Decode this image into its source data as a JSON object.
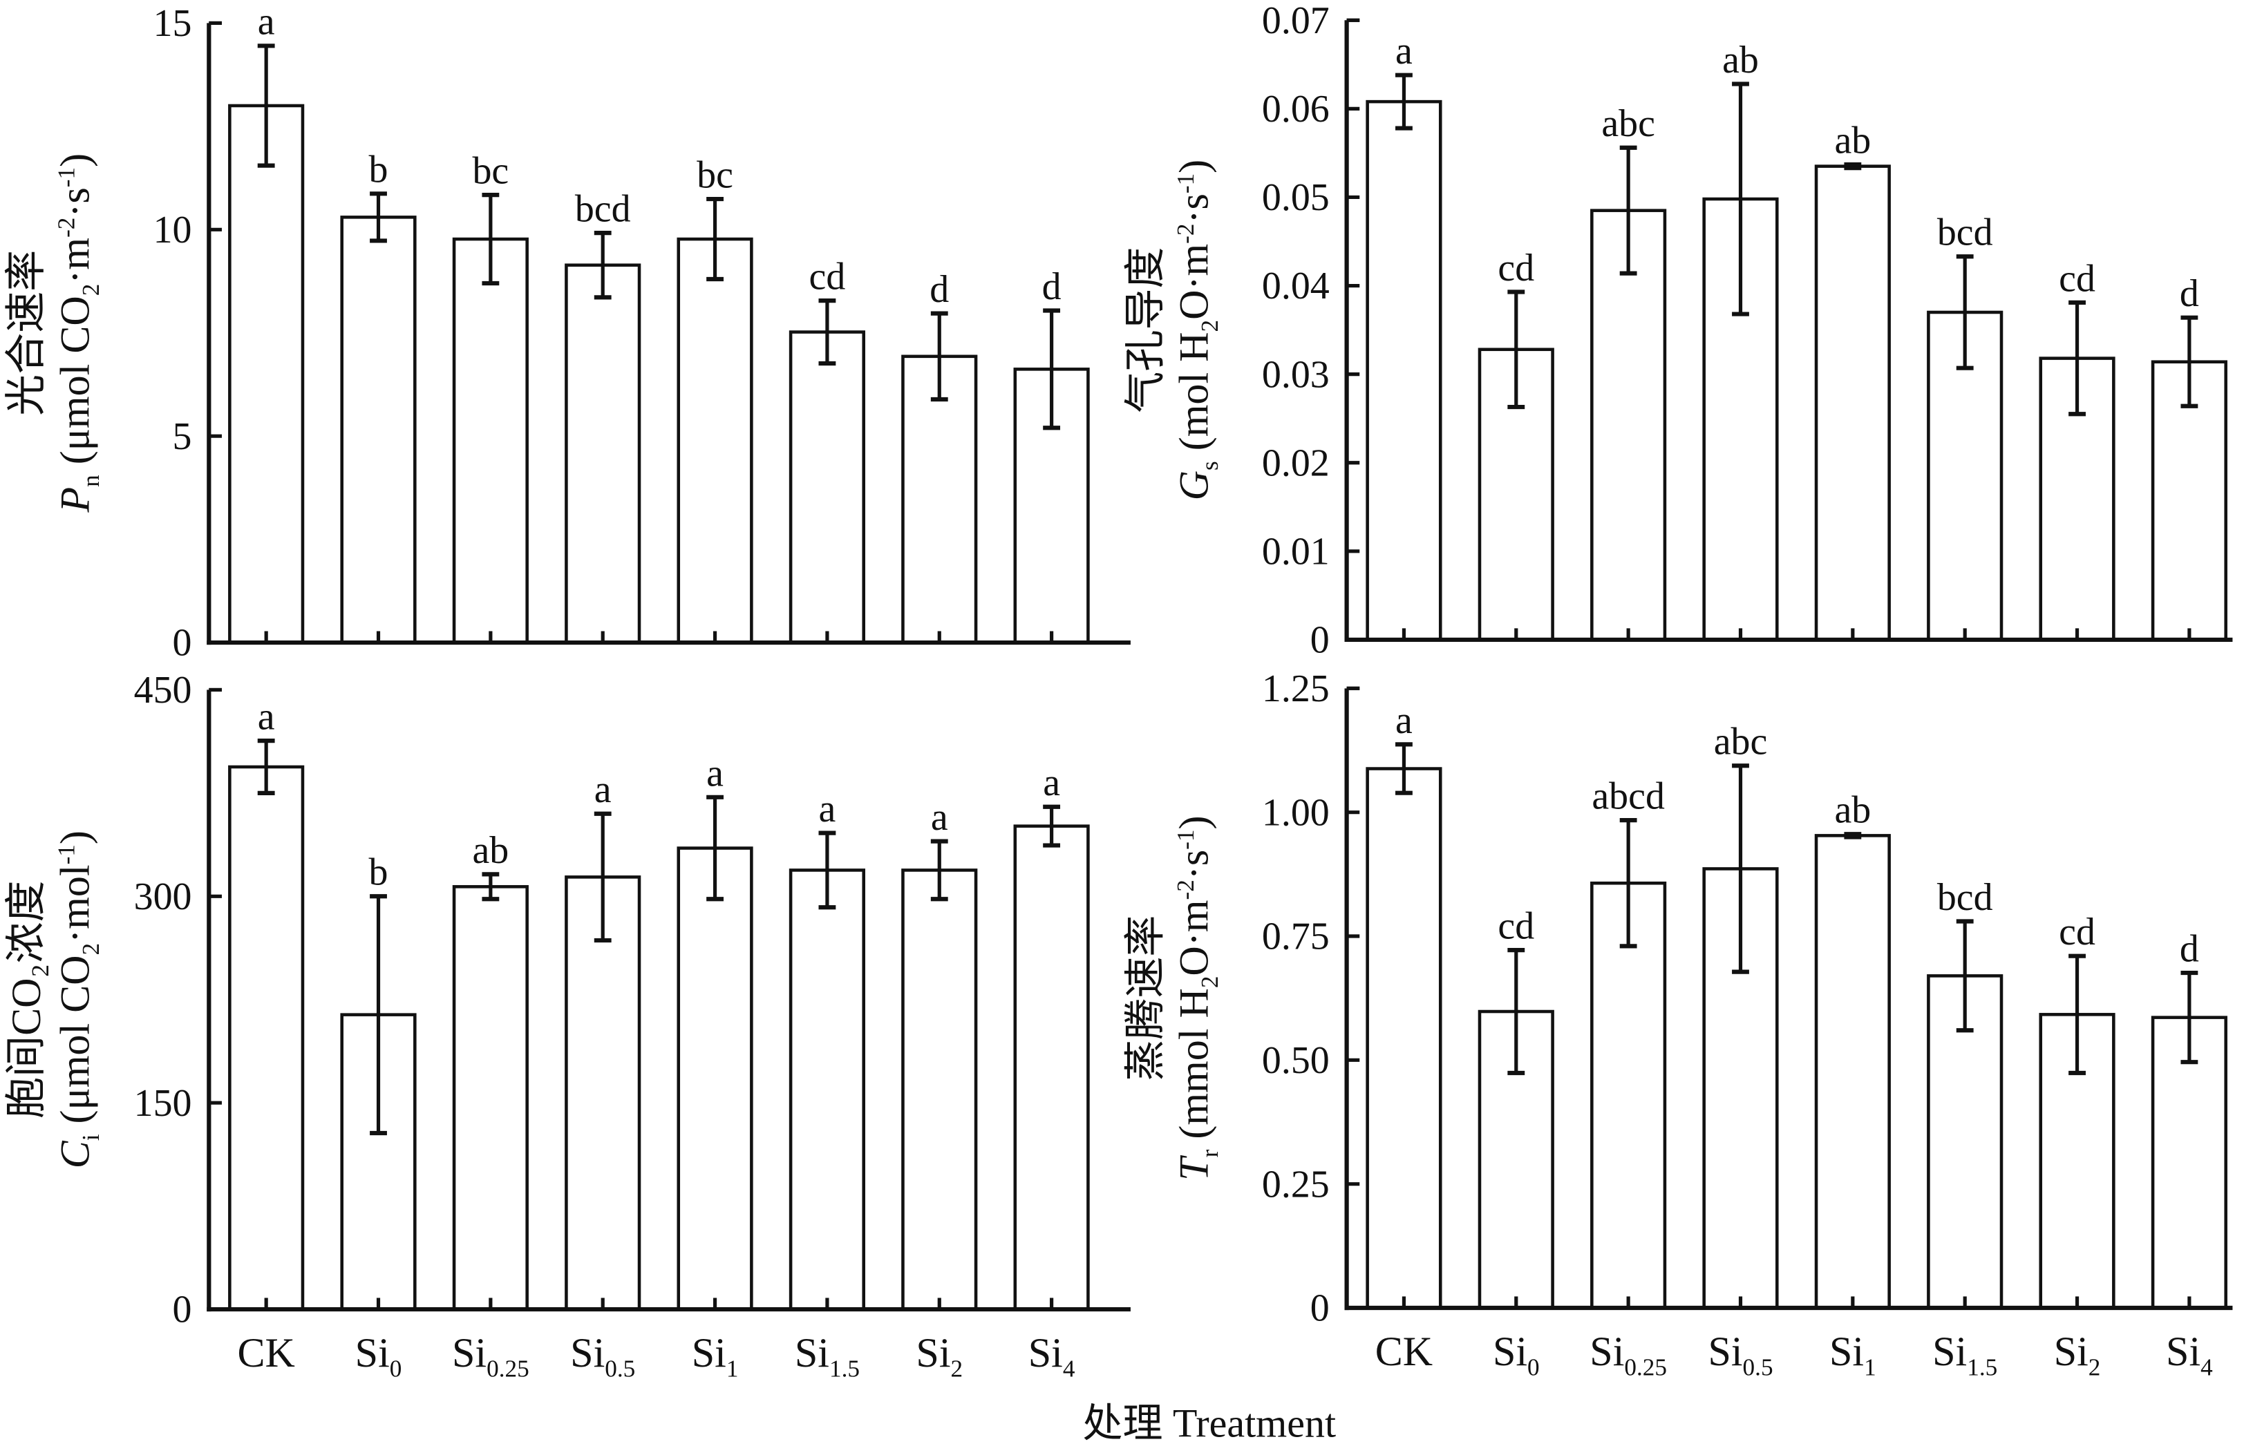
{
  "figure": {
    "xlabel": "处理 Treatment",
    "categories": [
      "CK",
      "Si0",
      "Si0.25",
      "Si0.5",
      "Si1",
      "Si1.5",
      "Si2",
      "Si4"
    ],
    "bar_fill": "#ffffff",
    "stroke_color": "#111111"
  },
  "chart_data": [
    {
      "type": "bar",
      "ylabel_cn": "光合速率",
      "ylabel": [
        {
          "t": "P",
          "s": "i"
        },
        {
          "t": "n",
          "s": "sub"
        },
        {
          "t": " (μmol CO"
        },
        {
          "t": "2",
          "s": "sub"
        },
        {
          "t": "·m"
        },
        {
          "t": "-2",
          "s": "sup"
        },
        {
          "t": "·s"
        },
        {
          "t": "-1",
          "s": "sup"
        },
        {
          "t": ")"
        }
      ],
      "ylim": [
        0,
        15
      ],
      "yticks": [
        "0",
        "5",
        "10",
        "15"
      ],
      "values": [
        13.0,
        10.3,
        9.77,
        9.14,
        9.77,
        7.52,
        6.93,
        6.62
      ],
      "errors": [
        1.45,
        0.57,
        1.07,
        0.78,
        0.97,
        0.76,
        1.04,
        1.42
      ],
      "letters": [
        "a",
        "b",
        "bc",
        "bcd",
        "bc",
        "cd",
        "d",
        "d"
      ]
    },
    {
      "type": "bar",
      "ylabel_cn": "气孔导度",
      "ylabel": [
        {
          "t": "G",
          "s": "i"
        },
        {
          "t": "s",
          "s": "sub"
        },
        {
          "t": " (mol H"
        },
        {
          "t": "2",
          "s": "sub"
        },
        {
          "t": "O·m"
        },
        {
          "t": "-2",
          "s": "sup"
        },
        {
          "t": "·s"
        },
        {
          "t": "-1",
          "s": "sup"
        },
        {
          "t": ")"
        }
      ],
      "ylim": [
        0,
        0.07
      ],
      "yticks": [
        "0",
        "0.01",
        "0.02",
        "0.03",
        "0.04",
        "0.05",
        "0.06",
        "0.07"
      ],
      "values": [
        0.0608,
        0.0328,
        0.0485,
        0.0498,
        0.0535,
        0.037,
        0.0318,
        0.0314
      ],
      "errors": [
        0.003,
        0.0065,
        0.0071,
        0.013,
        0.0002,
        0.0063,
        0.0063,
        0.005
      ],
      "letters": [
        "a",
        "cd",
        "abc",
        "ab",
        "ab",
        "bcd",
        "cd",
        "d"
      ]
    },
    {
      "type": "bar",
      "ylabel_cn": "胞间CO₂浓度",
      "ylabel": [
        {
          "t": "C",
          "s": "i"
        },
        {
          "t": "i",
          "s": "sub"
        },
        {
          "t": " (μmol CO"
        },
        {
          "t": "2",
          "s": "sub"
        },
        {
          "t": "·mol"
        },
        {
          "t": "-1",
          "s": "sup"
        },
        {
          "t": ")"
        }
      ],
      "ylim": [
        0,
        450
      ],
      "yticks": [
        "0",
        "150",
        "300",
        "450"
      ],
      "values": [
        394,
        214,
        307,
        314,
        335,
        319,
        319,
        351
      ],
      "errors": [
        19,
        86,
        9,
        46,
        37,
        27,
        21,
        14
      ],
      "letters": [
        "a",
        "b",
        "ab",
        "a",
        "a",
        "a",
        "a",
        "a"
      ]
    },
    {
      "type": "bar",
      "ylabel_cn": "蒸腾速率",
      "ylabel": [
        {
          "t": "T",
          "s": "i"
        },
        {
          "t": "r",
          "s": "sub"
        },
        {
          "t": " (mmol H"
        },
        {
          "t": "2",
          "s": "sub"
        },
        {
          "t": "O·m"
        },
        {
          "t": "-2",
          "s": "sup"
        },
        {
          "t": "·s"
        },
        {
          "t": "-1",
          "s": "sup"
        },
        {
          "t": ")"
        }
      ],
      "ylim": [
        0,
        1.25
      ],
      "yticks": [
        "0",
        "0.25",
        "0.50",
        "0.75",
        "1.00",
        "1.25"
      ],
      "values": [
        1.088,
        0.598,
        0.857,
        0.886,
        0.953,
        0.67,
        0.592,
        0.586
      ],
      "errors": [
        0.049,
        0.124,
        0.127,
        0.208,
        0.003,
        0.11,
        0.118,
        0.09
      ],
      "letters": [
        "a",
        "cd",
        "abcd",
        "abc",
        "ab",
        "bcd",
        "cd",
        "d"
      ]
    }
  ]
}
